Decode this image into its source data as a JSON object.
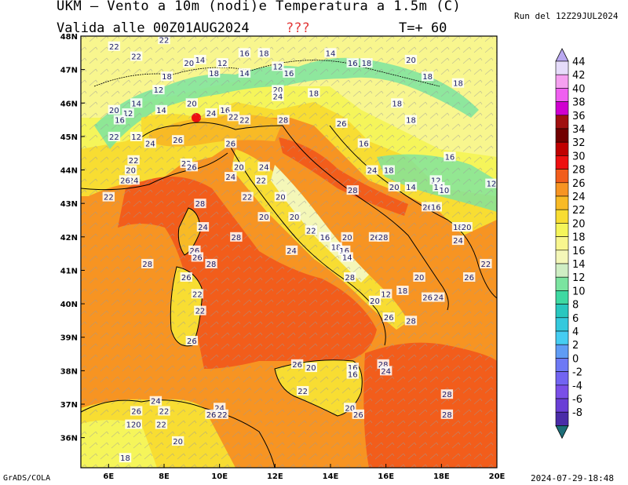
{
  "header": {
    "title": "UKM – Vento a 10m (nodi)e Temperatura a 1.5m (C)",
    "valid": "Valida alle 00Z01AUG2024",
    "unknown": "???",
    "timestep": "T=+ 60",
    "run": "Run del 12Z29JUL2024"
  },
  "footer": {
    "credit": "GrADS/COLA",
    "stamp": "2024-07-29-18:48"
  },
  "map": {
    "lon_ticks": [
      "6E",
      "8E",
      "10E",
      "12E",
      "14E",
      "16E",
      "18E",
      "20E"
    ],
    "lat_ticks": [
      "48N",
      "47N",
      "46N",
      "45N",
      "44N",
      "43N",
      "42N",
      "41N",
      "40N",
      "39N",
      "38N",
      "37N",
      "36N"
    ],
    "lon_range": [
      5,
      20
    ],
    "lat_range": [
      35.1,
      48
    ]
  },
  "colorbar": {
    "levels": [
      "44",
      "42",
      "40",
      "38",
      "36",
      "34",
      "32",
      "30",
      "28",
      "26",
      "24",
      "22",
      "20",
      "18",
      "16",
      "14",
      "12",
      "10",
      "8",
      "6",
      "4",
      "2",
      "0",
      "-2",
      "-4",
      "-6",
      "-8"
    ],
    "colors": [
      "#e6dcfa",
      "#f5a0f0",
      "#ef5ff0",
      "#d000d0",
      "#a01010",
      "#720000",
      "#c00000",
      "#ee1010",
      "#f25d1b",
      "#f79422",
      "#f8ba25",
      "#f8dd32",
      "#f5f55a",
      "#f8f68e",
      "#f4f7b8",
      "#cfeec4",
      "#7be4a0",
      "#3ed9a2",
      "#28c7bf",
      "#34c9dd",
      "#45cdf2",
      "#5f9cf5",
      "#6d79f5",
      "#7264f2",
      "#7a4fe8",
      "#6a3fd6",
      "#4a2ca8"
    ],
    "top_arrow_color": "#b9a8f0",
    "bottom_arrow_color": "#1d6e78"
  },
  "labels": [
    {
      "t": "22",
      "lon": 6.2,
      "lat": 47.7
    },
    {
      "t": "22",
      "lon": 7.0,
      "lat": 47.4
    },
    {
      "t": "22",
      "lon": 8.0,
      "lat": 47.9
    },
    {
      "t": "14",
      "lon": 9.3,
      "lat": 47.3
    },
    {
      "t": "16",
      "lon": 10.9,
      "lat": 47.5
    },
    {
      "t": "18",
      "lon": 11.6,
      "lat": 47.5
    },
    {
      "t": "20",
      "lon": 8.9,
      "lat": 47.2
    },
    {
      "t": "12",
      "lon": 10.1,
      "lat": 47.2
    },
    {
      "t": "14",
      "lon": 10.9,
      "lat": 46.9
    },
    {
      "t": "12",
      "lon": 12.1,
      "lat": 47.1
    },
    {
      "t": "16",
      "lon": 12.5,
      "lat": 46.9
    },
    {
      "t": "14",
      "lon": 14.0,
      "lat": 47.5
    },
    {
      "t": "16",
      "lon": 14.8,
      "lat": 47.2
    },
    {
      "t": "18",
      "lon": 15.3,
      "lat": 47.2
    },
    {
      "t": "20",
      "lon": 16.9,
      "lat": 47.3
    },
    {
      "t": "18",
      "lon": 17.5,
      "lat": 46.8
    },
    {
      "t": "18",
      "lon": 18.6,
      "lat": 46.6
    },
    {
      "t": "18",
      "lon": 9.8,
      "lat": 46.9
    },
    {
      "t": "18",
      "lon": 8.1,
      "lat": 46.8
    },
    {
      "t": "12",
      "lon": 7.8,
      "lat": 46.4
    },
    {
      "t": "14",
      "lon": 7.0,
      "lat": 46.0
    },
    {
      "t": "20",
      "lon": 6.2,
      "lat": 45.8
    },
    {
      "t": "12",
      "lon": 6.7,
      "lat": 45.7
    },
    {
      "t": "14",
      "lon": 7.9,
      "lat": 45.8
    },
    {
      "t": "16",
      "lon": 6.4,
      "lat": 45.5
    },
    {
      "t": "20",
      "lon": 9.0,
      "lat": 46.0
    },
    {
      "t": "24",
      "lon": 9.7,
      "lat": 45.7
    },
    {
      "t": "16",
      "lon": 10.2,
      "lat": 45.8
    },
    {
      "t": "22",
      "lon": 10.5,
      "lat": 45.6
    },
    {
      "t": "20",
      "lon": 12.1,
      "lat": 46.4
    },
    {
      "t": "24",
      "lon": 12.1,
      "lat": 46.2
    },
    {
      "t": "18",
      "lon": 13.4,
      "lat": 46.3
    },
    {
      "t": "28",
      "lon": 12.3,
      "lat": 45.5
    },
    {
      "t": "22",
      "lon": 10.9,
      "lat": 45.5
    },
    {
      "t": "18",
      "lon": 16.4,
      "lat": 46.0
    },
    {
      "t": "26",
      "lon": 14.4,
      "lat": 45.4
    },
    {
      "t": "18",
      "lon": 16.9,
      "lat": 45.5
    },
    {
      "t": "22",
      "lon": 6.2,
      "lat": 45.0
    },
    {
      "t": "12",
      "lon": 7.0,
      "lat": 45.0
    },
    {
      "t": "24",
      "lon": 7.5,
      "lat": 44.8
    },
    {
      "t": "26",
      "lon": 8.5,
      "lat": 44.9
    },
    {
      "t": "26",
      "lon": 10.4,
      "lat": 44.8
    },
    {
      "t": "16",
      "lon": 15.2,
      "lat": 44.8
    },
    {
      "t": "16",
      "lon": 18.3,
      "lat": 44.4
    },
    {
      "t": "22",
      "lon": 6.9,
      "lat": 44.3
    },
    {
      "t": "20",
      "lon": 6.8,
      "lat": 44.0
    },
    {
      "t": "24",
      "lon": 6.9,
      "lat": 43.7
    },
    {
      "t": "26",
      "lon": 6.6,
      "lat": 43.7
    },
    {
      "t": "22",
      "lon": 8.8,
      "lat": 44.2
    },
    {
      "t": "26",
      "lon": 9.0,
      "lat": 44.1
    },
    {
      "t": "20",
      "lon": 10.7,
      "lat": 44.1
    },
    {
      "t": "24",
      "lon": 11.6,
      "lat": 44.1
    },
    {
      "t": "24",
      "lon": 15.5,
      "lat": 44.0
    },
    {
      "t": "18",
      "lon": 16.1,
      "lat": 44.0
    },
    {
      "t": "24",
      "lon": 10.4,
      "lat": 43.8
    },
    {
      "t": "22",
      "lon": 11.5,
      "lat": 43.7
    },
    {
      "t": "20",
      "lon": 12.2,
      "lat": 43.2
    },
    {
      "t": "28",
      "lon": 14.8,
      "lat": 43.4
    },
    {
      "t": "20",
      "lon": 16.3,
      "lat": 43.5
    },
    {
      "t": "14",
      "lon": 16.9,
      "lat": 43.5
    },
    {
      "t": "12",
      "lon": 17.8,
      "lat": 43.7
    },
    {
      "t": "14",
      "lon": 17.9,
      "lat": 43.5
    },
    {
      "t": "10",
      "lon": 18.1,
      "lat": 43.4
    },
    {
      "t": "12",
      "lon": 19.8,
      "lat": 43.6
    },
    {
      "t": "22",
      "lon": 6.0,
      "lat": 43.2
    },
    {
      "t": "22",
      "lon": 11.0,
      "lat": 43.2
    },
    {
      "t": "28",
      "lon": 9.3,
      "lat": 43.0
    },
    {
      "t": "26",
      "lon": 17.5,
      "lat": 42.9
    },
    {
      "t": "16",
      "lon": 17.8,
      "lat": 42.9
    },
    {
      "t": "20",
      "lon": 11.6,
      "lat": 42.6
    },
    {
      "t": "20",
      "lon": 12.7,
      "lat": 42.6
    },
    {
      "t": "24",
      "lon": 9.4,
      "lat": 42.3
    },
    {
      "t": "18",
      "lon": 18.6,
      "lat": 42.3
    },
    {
      "t": "20",
      "lon": 18.9,
      "lat": 42.3
    },
    {
      "t": "24",
      "lon": 18.6,
      "lat": 41.9
    },
    {
      "t": "28",
      "lon": 10.6,
      "lat": 42.0
    },
    {
      "t": "22",
      "lon": 13.3,
      "lat": 42.2
    },
    {
      "t": "16",
      "lon": 13.8,
      "lat": 42.0
    },
    {
      "t": "20",
      "lon": 14.6,
      "lat": 42.0
    },
    {
      "t": "26",
      "lon": 15.6,
      "lat": 42.0
    },
    {
      "t": "28",
      "lon": 15.9,
      "lat": 42.0
    },
    {
      "t": "18",
      "lon": 14.2,
      "lat": 41.7
    },
    {
      "t": "16",
      "lon": 14.5,
      "lat": 41.6
    },
    {
      "t": "14",
      "lon": 14.6,
      "lat": 41.4
    },
    {
      "t": "24",
      "lon": 12.6,
      "lat": 41.6
    },
    {
      "t": "28",
      "lon": 7.4,
      "lat": 41.2
    },
    {
      "t": "26",
      "lon": 9.1,
      "lat": 41.6
    },
    {
      "t": "26",
      "lon": 9.2,
      "lat": 41.4
    },
    {
      "t": "28",
      "lon": 9.7,
      "lat": 41.2
    },
    {
      "t": "22",
      "lon": 19.6,
      "lat": 41.2
    },
    {
      "t": "26",
      "lon": 8.8,
      "lat": 40.8
    },
    {
      "t": "28",
      "lon": 14.7,
      "lat": 40.8
    },
    {
      "t": "20",
      "lon": 17.2,
      "lat": 40.8
    },
    {
      "t": "26",
      "lon": 19.0,
      "lat": 40.8
    },
    {
      "t": "22",
      "lon": 9.2,
      "lat": 40.3
    },
    {
      "t": "12",
      "lon": 16.0,
      "lat": 40.3
    },
    {
      "t": "18",
      "lon": 16.6,
      "lat": 40.4
    },
    {
      "t": "26",
      "lon": 17.5,
      "lat": 40.2
    },
    {
      "t": "24",
      "lon": 17.9,
      "lat": 40.2
    },
    {
      "t": "20",
      "lon": 15.6,
      "lat": 40.1
    },
    {
      "t": "22",
      "lon": 9.3,
      "lat": 39.8
    },
    {
      "t": "26",
      "lon": 16.1,
      "lat": 39.6
    },
    {
      "t": "28",
      "lon": 16.9,
      "lat": 39.5
    },
    {
      "t": "26",
      "lon": 9.0,
      "lat": 38.9
    },
    {
      "t": "26",
      "lon": 12.8,
      "lat": 38.2
    },
    {
      "t": "20",
      "lon": 13.3,
      "lat": 38.1
    },
    {
      "t": "16",
      "lon": 14.8,
      "lat": 38.1
    },
    {
      "t": "28",
      "lon": 15.9,
      "lat": 38.2
    },
    {
      "t": "24",
      "lon": 16.0,
      "lat": 38.0
    },
    {
      "t": "16",
      "lon": 14.8,
      "lat": 37.9
    },
    {
      "t": "22",
      "lon": 13.0,
      "lat": 37.4
    },
    {
      "t": "28",
      "lon": 18.2,
      "lat": 37.3
    },
    {
      "t": "24",
      "lon": 7.7,
      "lat": 37.1
    },
    {
      "t": "26",
      "lon": 7.0,
      "lat": 36.8
    },
    {
      "t": "22",
      "lon": 8.0,
      "lat": 36.8
    },
    {
      "t": "24",
      "lon": 10.0,
      "lat": 36.9
    },
    {
      "t": "26",
      "lon": 9.7,
      "lat": 36.7
    },
    {
      "t": "22",
      "lon": 10.1,
      "lat": 36.7
    },
    {
      "t": "20",
      "lon": 14.7,
      "lat": 36.9
    },
    {
      "t": "26",
      "lon": 15.0,
      "lat": 36.7
    },
    {
      "t": "28",
      "lon": 18.2,
      "lat": 36.7
    },
    {
      "t": "120",
      "lon": 6.9,
      "lat": 36.4
    },
    {
      "t": "22",
      "lon": 7.9,
      "lat": 36.4
    },
    {
      "t": "20",
      "lon": 8.5,
      "lat": 35.9
    },
    {
      "t": "18",
      "lon": 6.6,
      "lat": 35.4
    }
  ]
}
